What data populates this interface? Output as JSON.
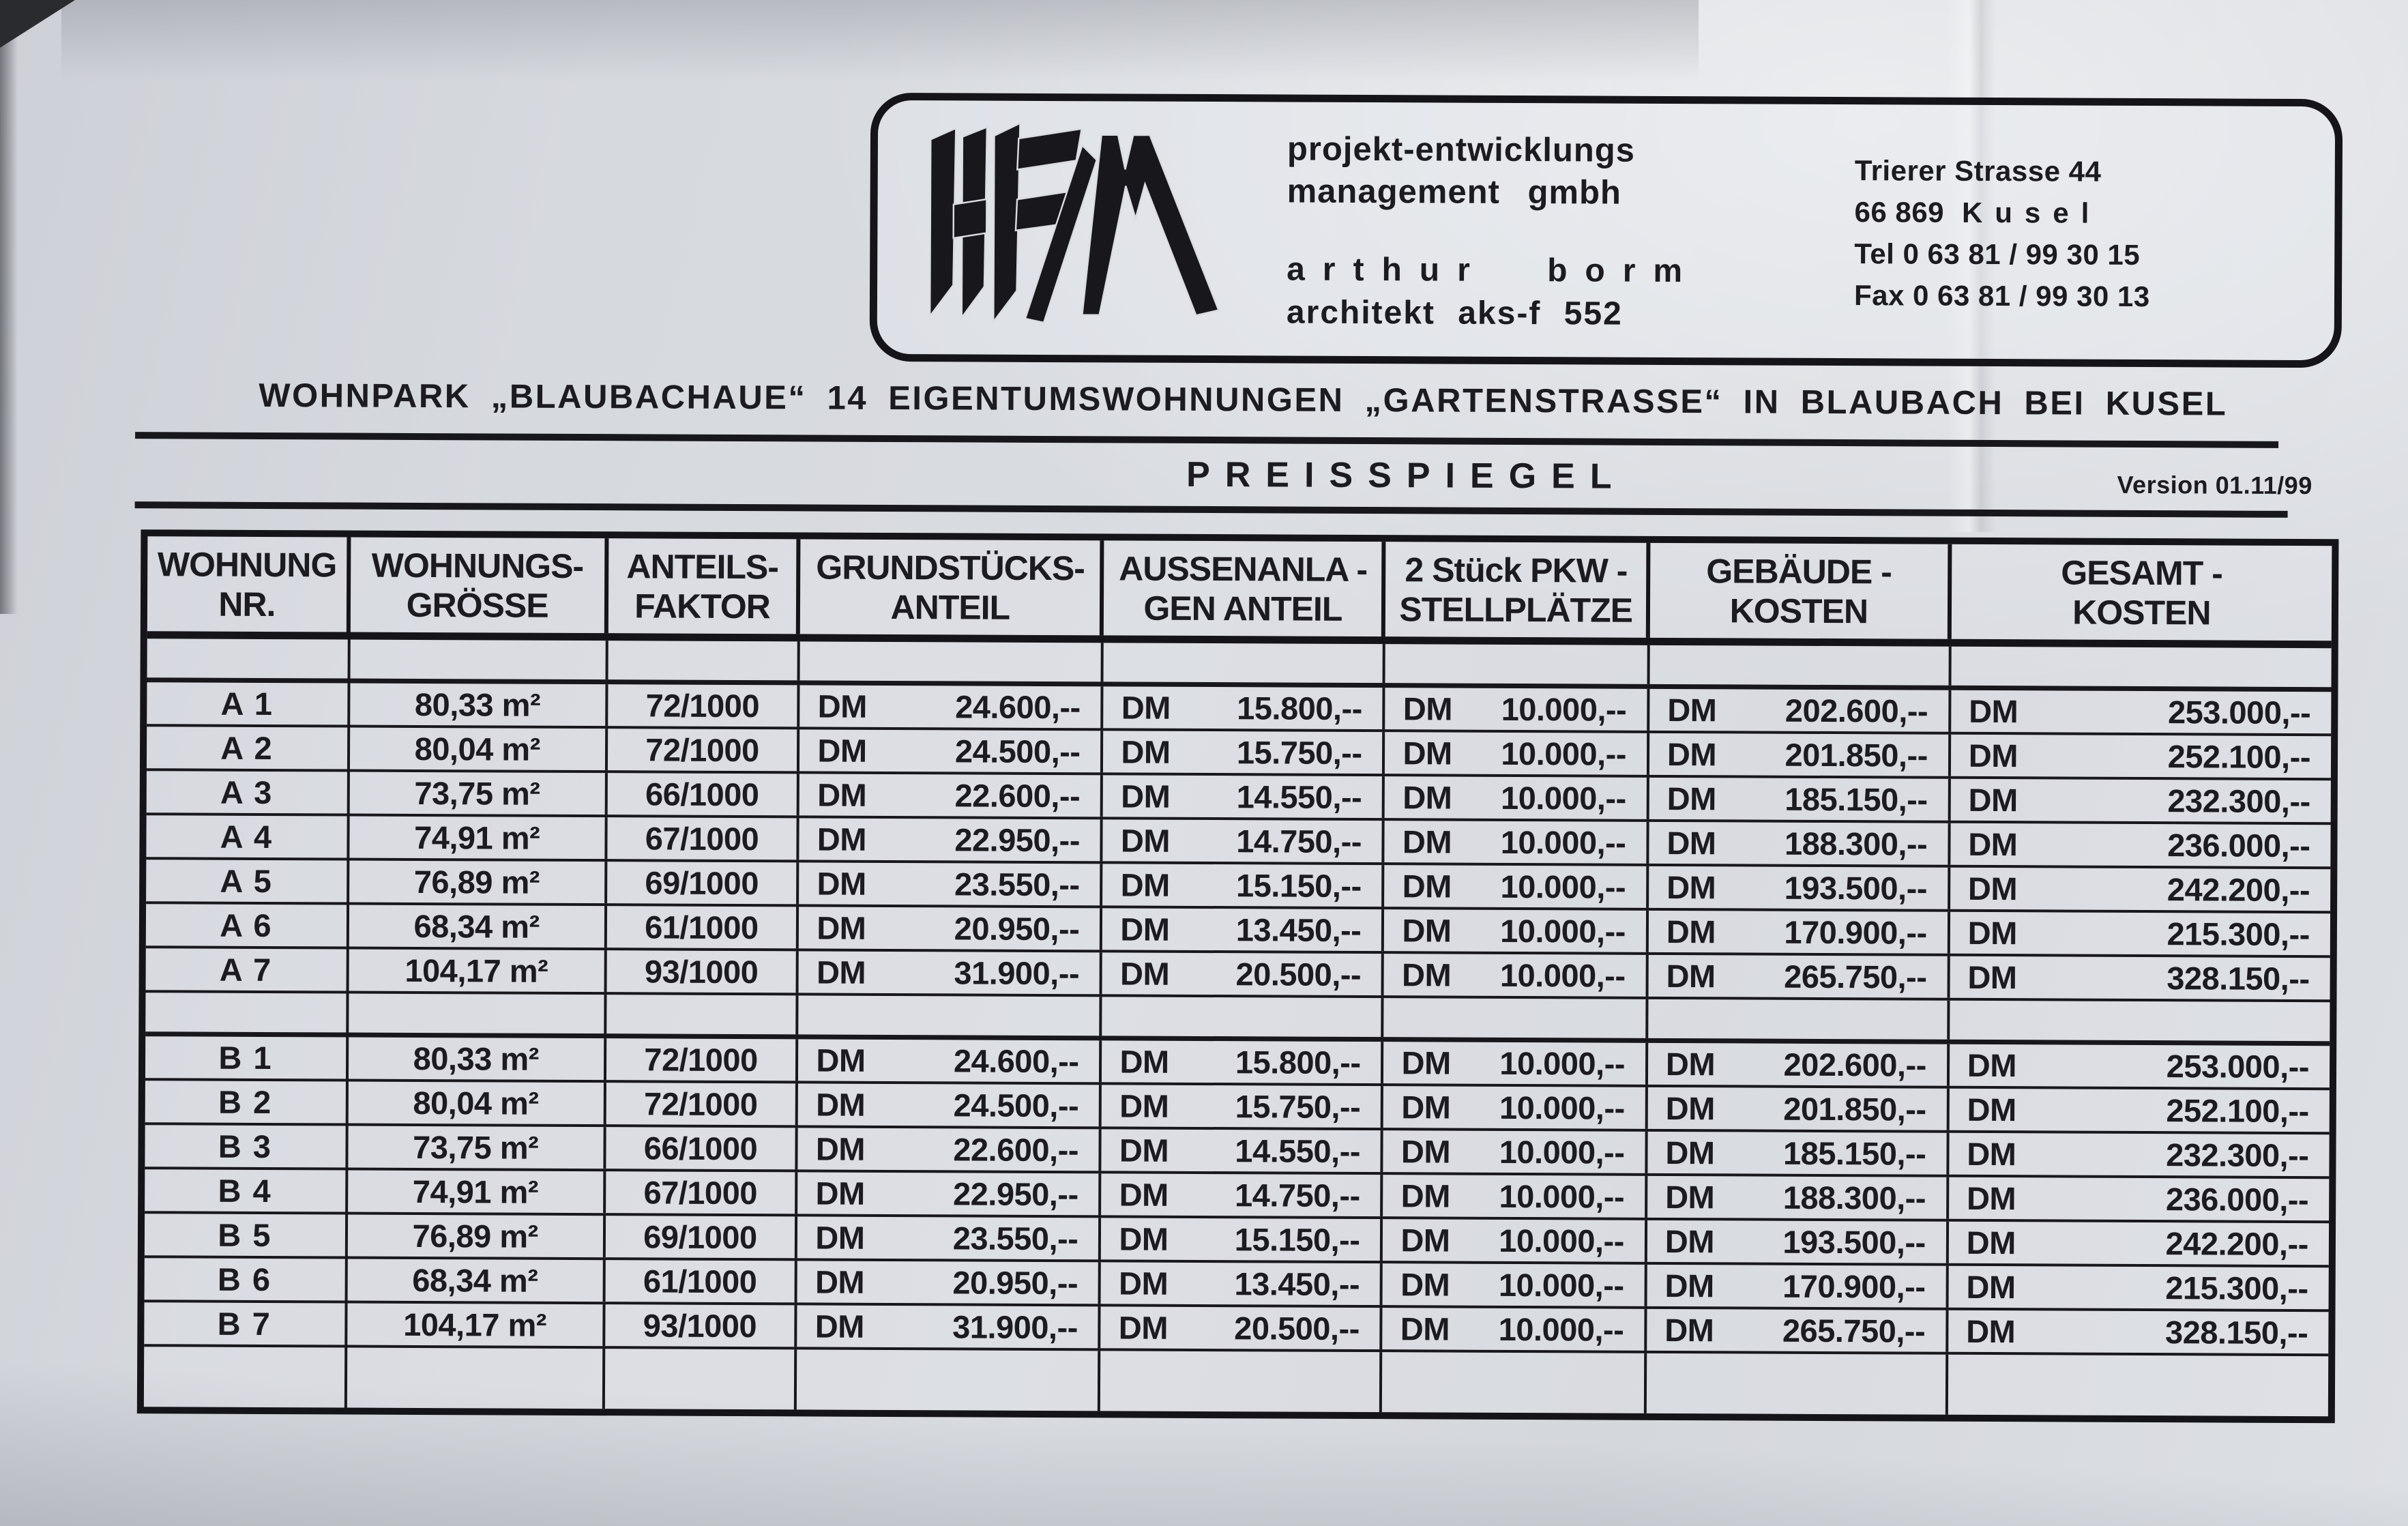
{
  "colors": {
    "paper": "#d6d9de",
    "ink": "#1b1b20",
    "line": "#17171c"
  },
  "letterhead": {
    "logo": "HFM",
    "company_line1": "projekt-entwicklungs",
    "company_line2": "management gmbh",
    "person_line1": "arthur borm",
    "person_line2": "architekt aks-f 552",
    "address_street": "Trierer Strasse 44",
    "address_zip": "66 869",
    "address_city": "Kusel",
    "address_tel": "Tel 0 63 81 / 99 30 15",
    "address_fax": "Fax 0 63 81 / 99 30 13"
  },
  "title": "WOHNPARK „BLAUBACHAUE“ 14 EIGENTUMSWOHNUNGEN „GARTENSTRASSE“ IN BLAUBACH BEI KUSEL",
  "subtitle": "PREISSPIEGEL",
  "version": "Version 01.11/99",
  "table": {
    "headers": [
      {
        "line1": "WOHNUNG",
        "line2": "NR."
      },
      {
        "line1": "WOHNUNGS-",
        "line2": "GRÖSSE"
      },
      {
        "line1": "ANTEILS-",
        "line2": "FAKTOR"
      },
      {
        "line1": "GRUNDSTÜCKS-",
        "line2": "ANTEIL"
      },
      {
        "line1": "AUSSENANLA -",
        "line2": "GEN  ANTEIL"
      },
      {
        "line1": "2 Stück PKW -",
        "line2": "STELLPLÄTZE"
      },
      {
        "line1": "GEBÄUDE -",
        "line2": "KOSTEN"
      },
      {
        "line1": "GESAMT -",
        "line2": "KOSTEN"
      }
    ],
    "currency": "DM",
    "groups": [
      {
        "name": "A",
        "rows": [
          {
            "nr": "A 1",
            "size": "80,33 m²",
            "factor": "72/1000",
            "grundstueck": "24.600,--",
            "aussenanlagen": "15.800,--",
            "stellplaetze": "10.000,--",
            "gebaeude": "202.600,--",
            "gesamt": "253.000,--"
          },
          {
            "nr": "A 2",
            "size": "80,04 m²",
            "factor": "72/1000",
            "grundstueck": "24.500,--",
            "aussenanlagen": "15.750,--",
            "stellplaetze": "10.000,--",
            "gebaeude": "201.850,--",
            "gesamt": "252.100,--"
          },
          {
            "nr": "A 3",
            "size": "73,75 m²",
            "factor": "66/1000",
            "grundstueck": "22.600,--",
            "aussenanlagen": "14.550,--",
            "stellplaetze": "10.000,--",
            "gebaeude": "185.150,--",
            "gesamt": "232.300,--"
          },
          {
            "nr": "A 4",
            "size": "74,91 m²",
            "factor": "67/1000",
            "grundstueck": "22.950,--",
            "aussenanlagen": "14.750,--",
            "stellplaetze": "10.000,--",
            "gebaeude": "188.300,--",
            "gesamt": "236.000,--"
          },
          {
            "nr": "A 5",
            "size": "76,89 m²",
            "factor": "69/1000",
            "grundstueck": "23.550,--",
            "aussenanlagen": "15.150,--",
            "stellplaetze": "10.000,--",
            "gebaeude": "193.500,--",
            "gesamt": "242.200,--"
          },
          {
            "nr": "A 6",
            "size": "68,34 m²",
            "factor": "61/1000",
            "grundstueck": "20.950,--",
            "aussenanlagen": "13.450,--",
            "stellplaetze": "10.000,--",
            "gebaeude": "170.900,--",
            "gesamt": "215.300,--"
          },
          {
            "nr": "A 7",
            "size": "104,17 m²",
            "factor": "93/1000",
            "grundstueck": "31.900,--",
            "aussenanlagen": "20.500,--",
            "stellplaetze": "10.000,--",
            "gebaeude": "265.750,--",
            "gesamt": "328.150,--"
          }
        ]
      },
      {
        "name": "B",
        "rows": [
          {
            "nr": "B 1",
            "size": "80,33 m²",
            "factor": "72/1000",
            "grundstueck": "24.600,--",
            "aussenanlagen": "15.800,--",
            "stellplaetze": "10.000,--",
            "gebaeude": "202.600,--",
            "gesamt": "253.000,--"
          },
          {
            "nr": "B 2",
            "size": "80,04 m²",
            "factor": "72/1000",
            "grundstueck": "24.500,--",
            "aussenanlagen": "15.750,--",
            "stellplaetze": "10.000,--",
            "gebaeude": "201.850,--",
            "gesamt": "252.100,--"
          },
          {
            "nr": "B 3",
            "size": "73,75 m²",
            "factor": "66/1000",
            "grundstueck": "22.600,--",
            "aussenanlagen": "14.550,--",
            "stellplaetze": "10.000,--",
            "gebaeude": "185.150,--",
            "gesamt": "232.300,--"
          },
          {
            "nr": "B 4",
            "size": "74,91 m²",
            "factor": "67/1000",
            "grundstueck": "22.950,--",
            "aussenanlagen": "14.750,--",
            "stellplaetze": "10.000,--",
            "gebaeude": "188.300,--",
            "gesamt": "236.000,--"
          },
          {
            "nr": "B 5",
            "size": "76,89 m²",
            "factor": "69/1000",
            "grundstueck": "23.550,--",
            "aussenanlagen": "15.150,--",
            "stellplaetze": "10.000,--",
            "gebaeude": "193.500,--",
            "gesamt": "242.200,--"
          },
          {
            "nr": "B 6",
            "size": "68,34 m²",
            "factor": "61/1000",
            "grundstueck": "20.950,--",
            "aussenanlagen": "13.450,--",
            "stellplaetze": "10.000,--",
            "gebaeude": "170.900,--",
            "gesamt": "215.300,--"
          },
          {
            "nr": "B 7",
            "size": "104,17 m²",
            "factor": "93/1000",
            "grundstueck": "31.900,--",
            "aussenanlagen": "20.500,--",
            "stellplaetze": "10.000,--",
            "gebaeude": "265.750,--",
            "gesamt": "328.150,--"
          }
        ]
      }
    ]
  }
}
